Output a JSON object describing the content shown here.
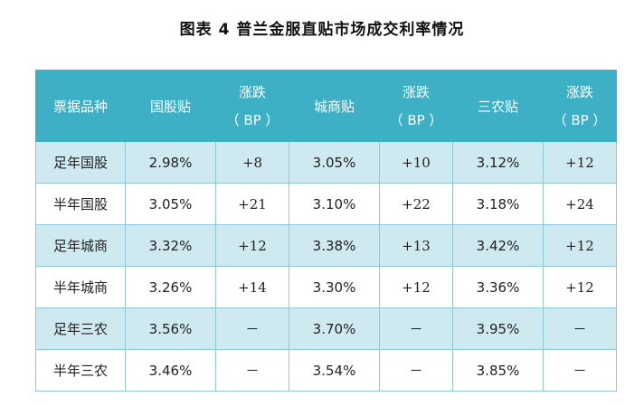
{
  "title": "图表 4  普兰金服直贴市场成交利率情况",
  "headers": {
    "type": "票据品种",
    "guogu": "国股贴",
    "chengshang": "城商贴",
    "sannong": "三农贴",
    "change_label": "涨跌",
    "change_unit": "（ BP ）"
  },
  "rows": [
    {
      "type": "足年国股",
      "guogu": "2.98%",
      "guogu_chg": "+8",
      "chengshang": "3.05%",
      "chengshang_chg": "+10",
      "sannong": "3.12%",
      "sannong_chg": "+12"
    },
    {
      "type": "半年国股",
      "guogu": "3.05%",
      "guogu_chg": "+21",
      "chengshang": "3.10%",
      "chengshang_chg": "+22",
      "sannong": "3.18%",
      "sannong_chg": "+24"
    },
    {
      "type": "足年城商",
      "guogu": "3.32%",
      "guogu_chg": "+12",
      "chengshang": "3.38%",
      "chengshang_chg": "+13",
      "sannong": "3.42%",
      "sannong_chg": "+12"
    },
    {
      "type": "半年城商",
      "guogu": "3.26%",
      "guogu_chg": "+14",
      "chengshang": "3.30%",
      "chengshang_chg": "+12",
      "sannong": "3.36%",
      "sannong_chg": "+12"
    },
    {
      "type": "足年三农",
      "guogu": "3.56%",
      "guogu_chg": "－",
      "chengshang": "3.70%",
      "chengshang_chg": "－",
      "sannong": "3.95%",
      "sannong_chg": "－"
    },
    {
      "type": "半年三农",
      "guogu": "3.46%",
      "guogu_chg": "－",
      "chengshang": "3.54%",
      "chengshang_chg": "－",
      "sannong": "3.85%",
      "sannong_chg": "－"
    }
  ],
  "colors": {
    "header_bg": "#3db0c6",
    "header_text": "#ffffff",
    "stripe_bg": "#cfe9f1",
    "border": "#8fc9d7"
  }
}
